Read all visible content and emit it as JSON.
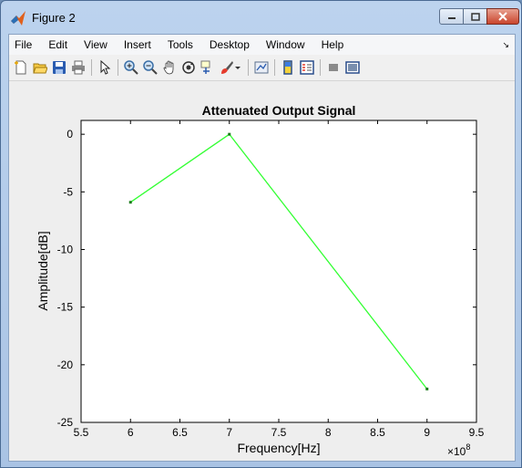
{
  "window": {
    "title": "Figure 2"
  },
  "menu": [
    "File",
    "Edit",
    "View",
    "Insert",
    "Tools",
    "Desktop",
    "Window",
    "Help"
  ],
  "toolbar": [
    "new-figure-icon",
    "open-file-icon",
    "save-icon",
    "print-icon",
    "pointer-icon",
    "zoom-in-icon",
    "zoom-out-icon",
    "pan-icon",
    "rotate-3d-icon",
    "data-cursor-icon",
    "brush-icon",
    "link-plot-icon",
    "colorbar-icon",
    "legend-icon",
    "hide-plot-tools-icon",
    "show-plot-tools-icon"
  ],
  "chart_data": {
    "type": "line",
    "title": "Attenuated Output Signal",
    "xlabel": "Frequency[Hz]",
    "ylabel": "Amplitude[dB]",
    "x_exponent_label": "×10",
    "x_exponent": "8",
    "xlim": [
      5.5,
      9.5
    ],
    "ylim": [
      -25,
      1.2
    ],
    "xticks": [
      5.5,
      6,
      6.5,
      7,
      7.5,
      8,
      8.5,
      9,
      9.5
    ],
    "xtick_labels": [
      "5.5",
      "6",
      "6.5",
      "7",
      "7.5",
      "8",
      "8.5",
      "9",
      "9.5"
    ],
    "yticks": [
      0,
      -5,
      -10,
      -15,
      -20,
      -25
    ],
    "ytick_labels": [
      "0",
      "-5",
      "-10",
      "-15",
      "-20",
      "-25"
    ],
    "grid": false,
    "series": [
      {
        "x": [
          6,
          7,
          9
        ],
        "y": [
          -5.9,
          0,
          -22.1
        ],
        "color": "#33ff33"
      }
    ]
  }
}
